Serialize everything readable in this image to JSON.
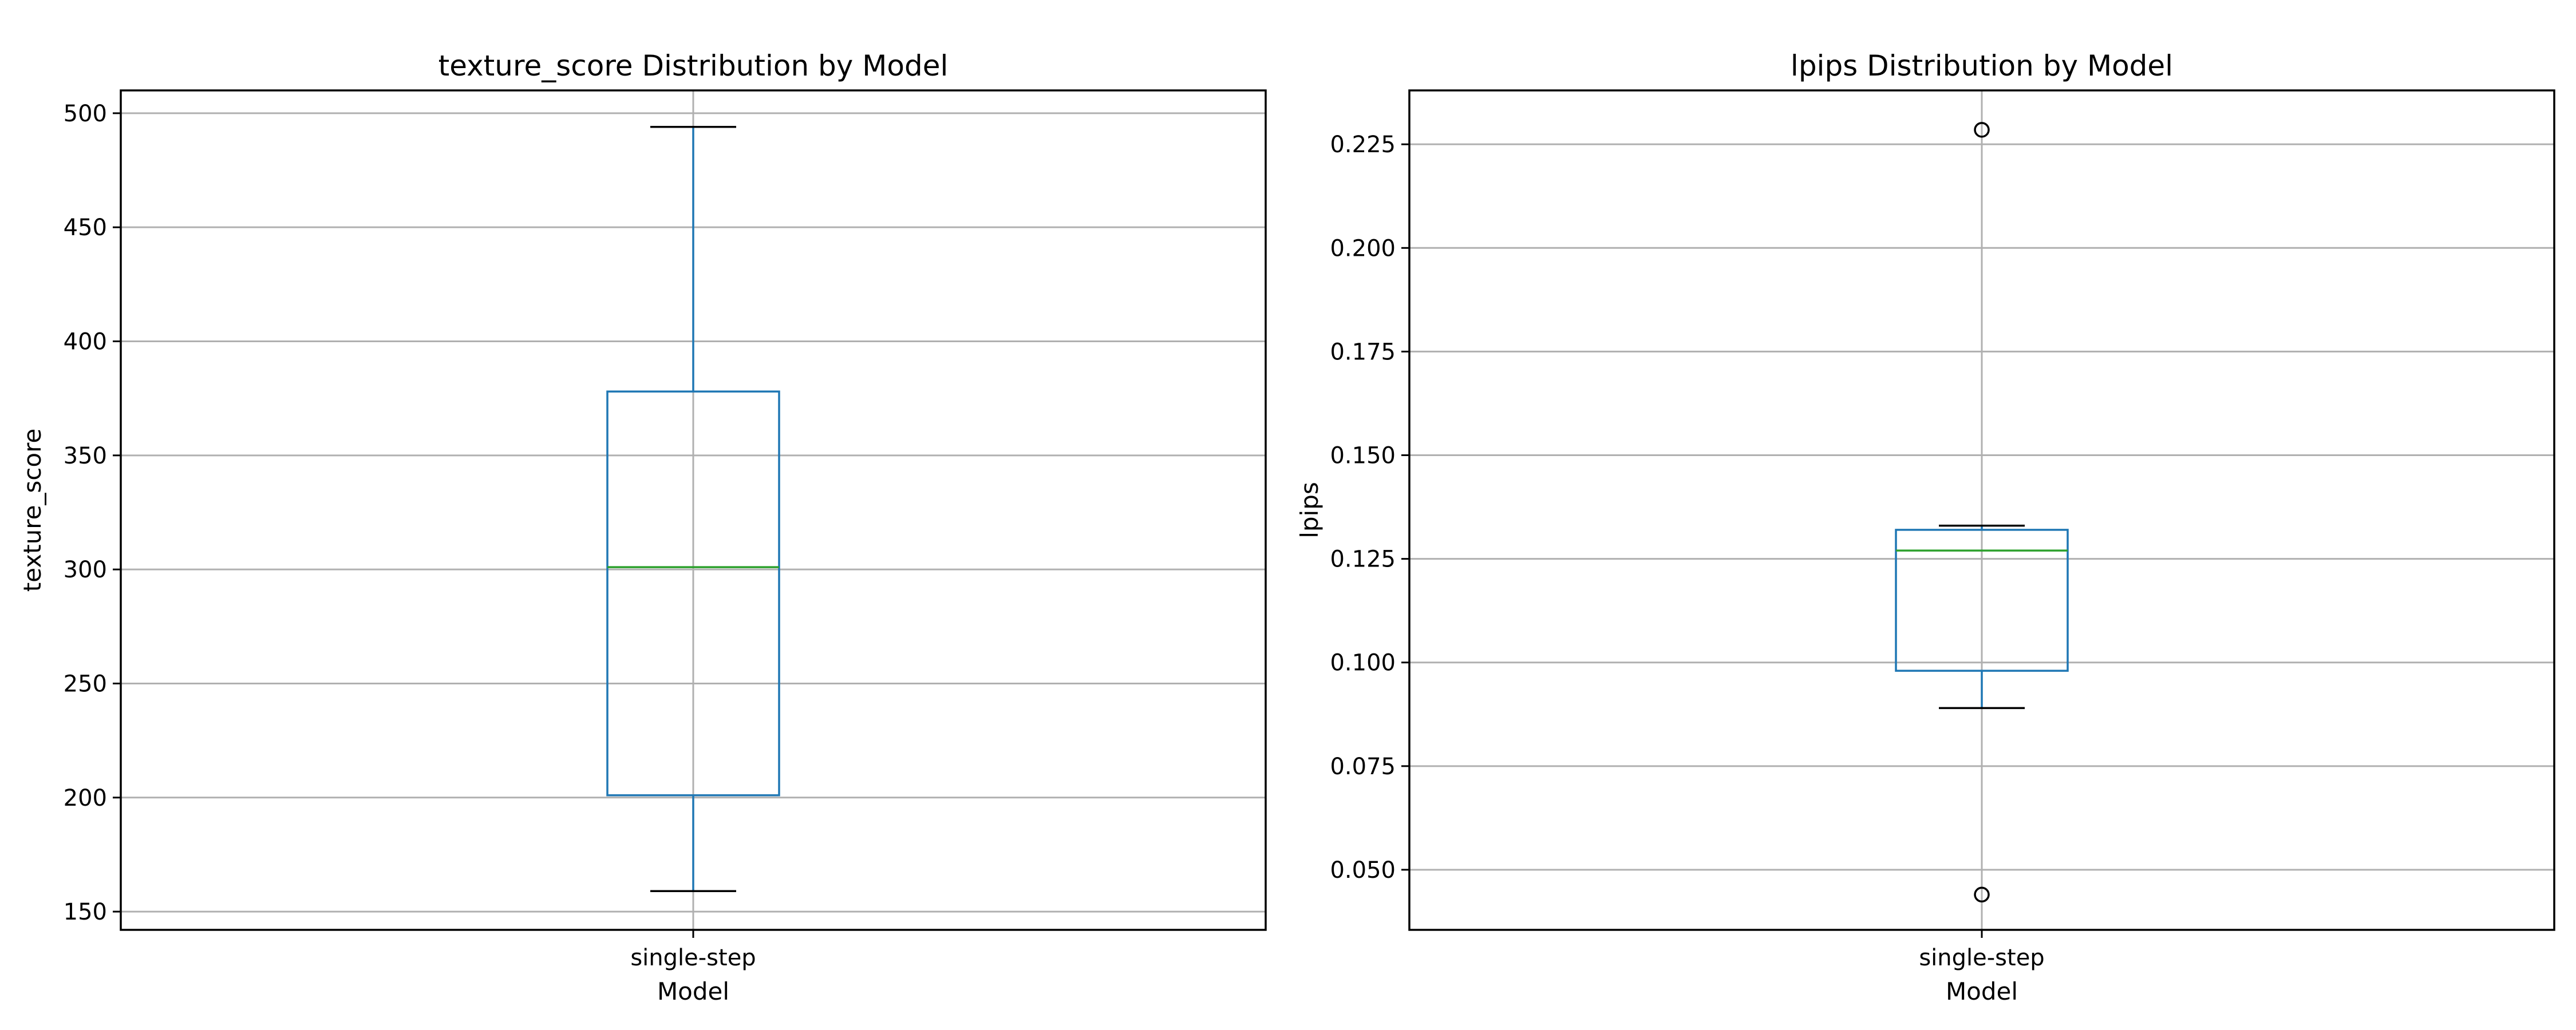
{
  "chart_data": [
    {
      "type": "box",
      "title": "texture_score Distribution by Model",
      "xlabel": "Model",
      "ylabel": "texture_score",
      "categories": [
        "single-step"
      ],
      "ylim": [
        142,
        510
      ],
      "yticks": [
        150,
        200,
        250,
        300,
        350,
        400,
        450,
        500
      ],
      "grid": true,
      "boxes": [
        {
          "category": "single-step",
          "whisker_low": 159,
          "q1": 201,
          "median": 301,
          "q3": 378,
          "whisker_high": 494,
          "outliers": []
        }
      ]
    },
    {
      "type": "box",
      "title": "lpips Distribution by Model",
      "xlabel": "Model",
      "ylabel": "lpips",
      "categories": [
        "single-step"
      ],
      "ylim": [
        0.0355,
        0.238
      ],
      "yticks": [
        0.05,
        0.075,
        0.1,
        0.125,
        0.15,
        0.175,
        0.2,
        0.225
      ],
      "grid": true,
      "boxes": [
        {
          "category": "single-step",
          "whisker_low": 0.089,
          "q1": 0.098,
          "median": 0.127,
          "q3": 0.132,
          "whisker_high": 0.133,
          "outliers": [
            0.044,
            0.2285
          ]
        }
      ]
    }
  ],
  "colors": {
    "box": "#1f77b4",
    "median": "#2ca02c",
    "whisker_cap": "#000000",
    "grid": "#b0b0b0",
    "frame": "#000000"
  }
}
